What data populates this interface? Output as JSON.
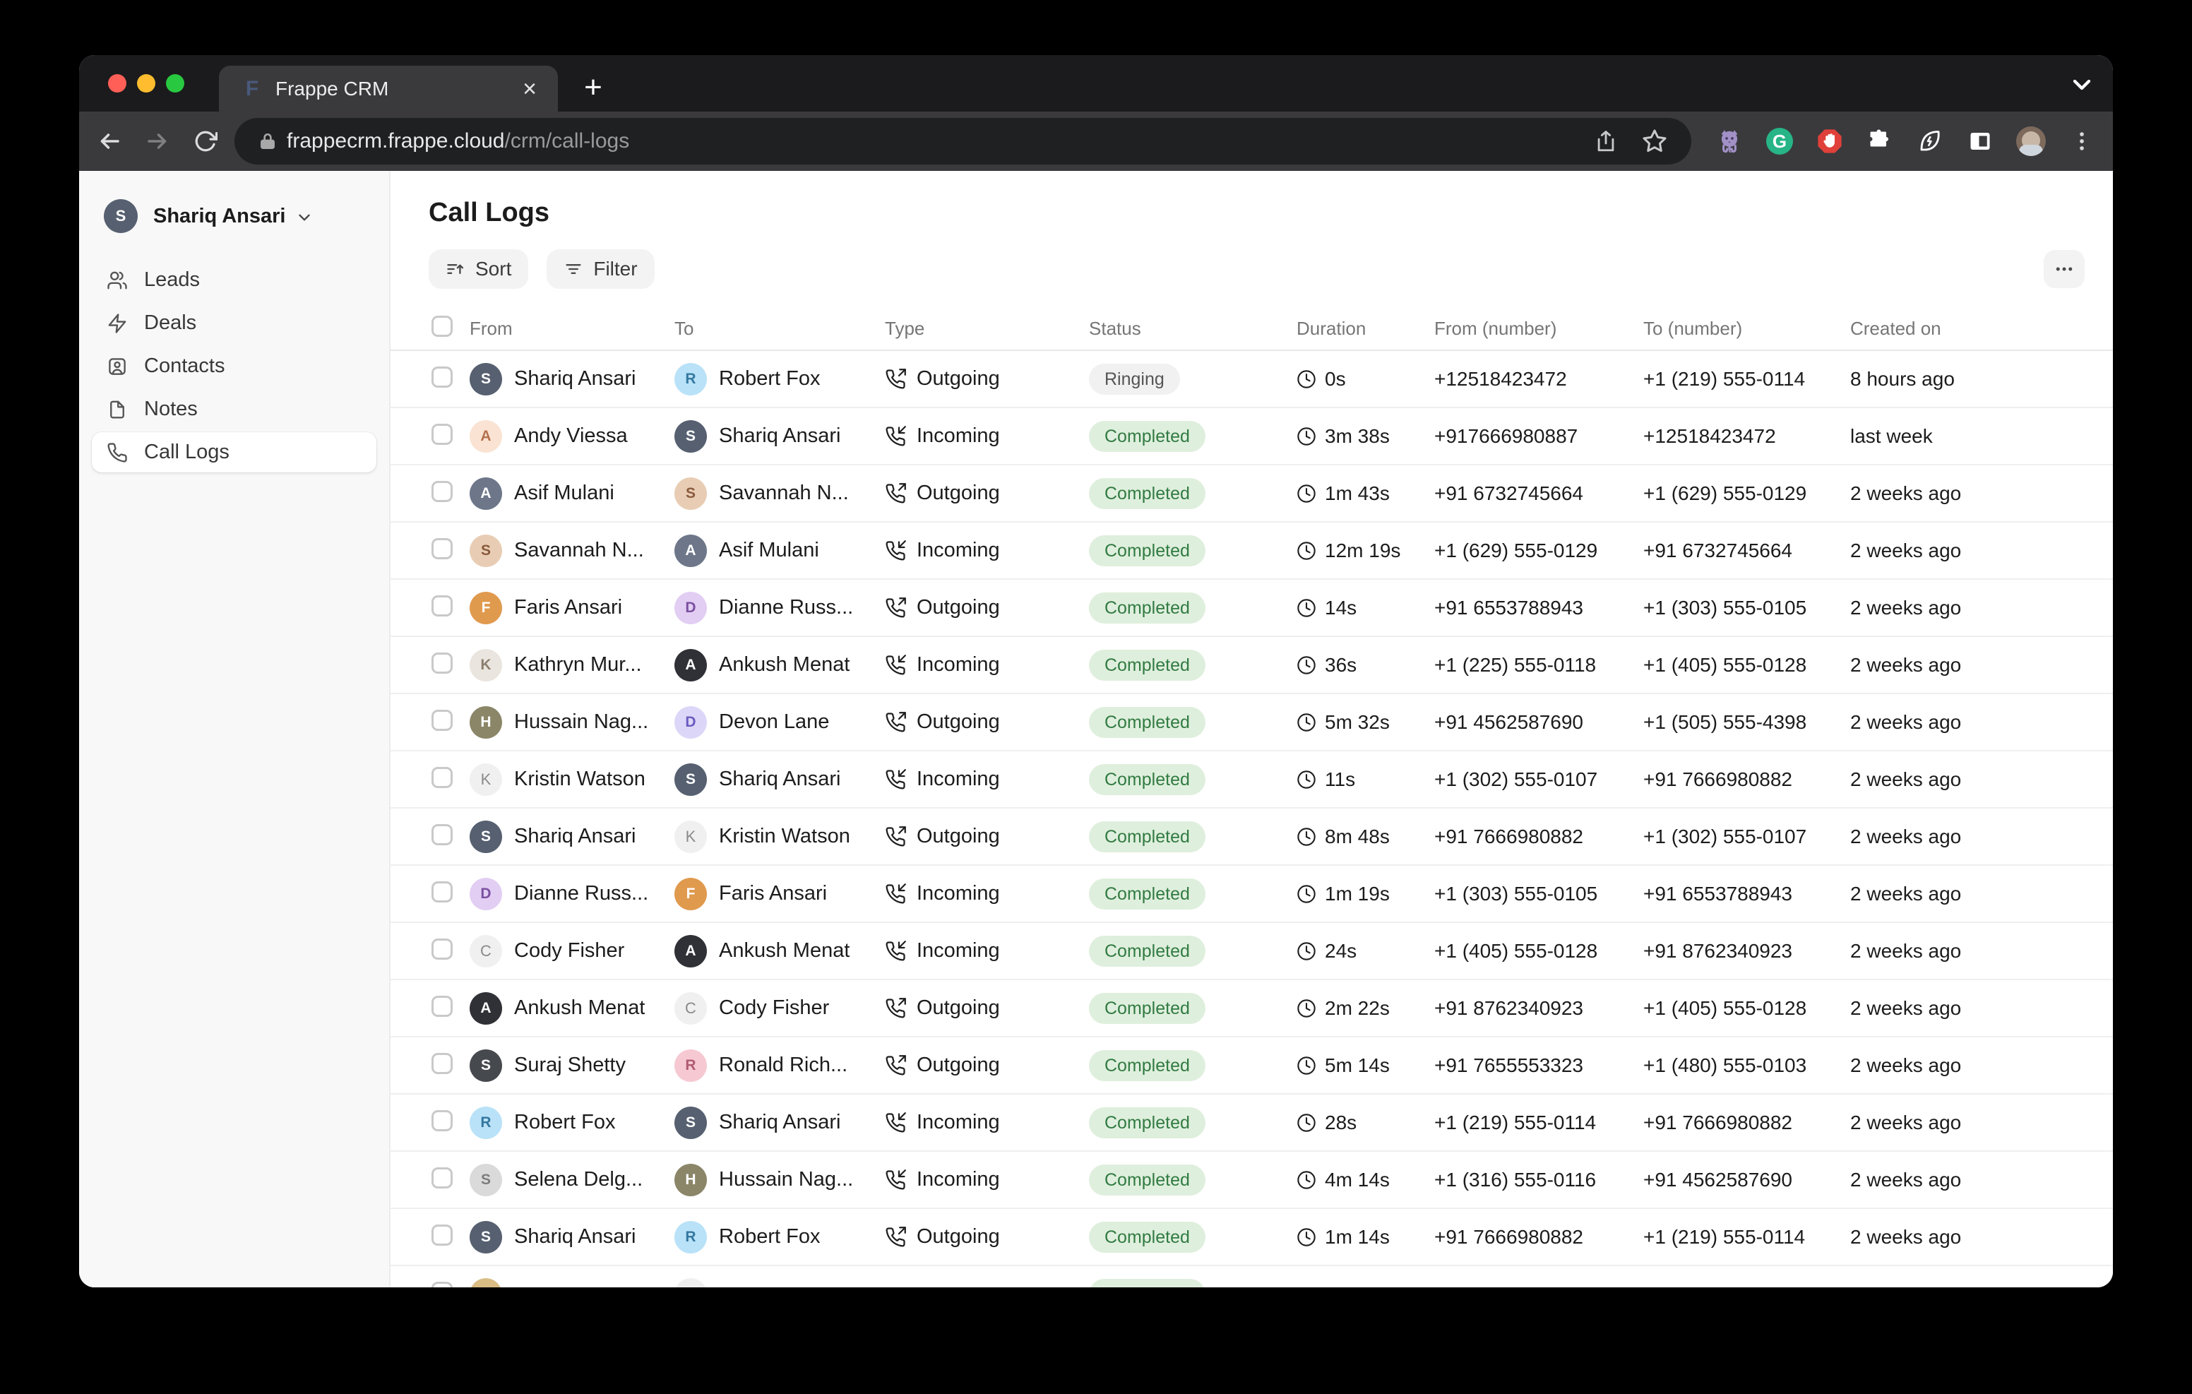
{
  "browser": {
    "tab_title": "Frappe CRM",
    "tab_close": "×",
    "new_tab": "+",
    "favicon_letter": "F",
    "url_host": "frappecrm.frappe.cloud",
    "url_path": "/crm/call-logs",
    "toolbar_icons": [
      "back-icon",
      "forward-icon",
      "reload-icon",
      "lock-icon",
      "share-icon",
      "bookmark-star-icon",
      "github-extension-icon",
      "grammarly-extension-icon",
      "adblock-extension-icon",
      "puzzle-extensions-icon",
      "leaf-extension-icon",
      "reading-panel-icon",
      "profile-avatar",
      "menu-dots-icon",
      "chevron-down-icon"
    ],
    "grammarly_letter": "G"
  },
  "sidebar": {
    "user": {
      "name": "Shariq Ansari",
      "initial": "S"
    },
    "items": [
      {
        "label": "Leads"
      },
      {
        "label": "Deals"
      },
      {
        "label": "Contacts"
      },
      {
        "label": "Notes"
      },
      {
        "label": "Call Logs",
        "active": true
      }
    ]
  },
  "main": {
    "title": "Call Logs",
    "sort_label": "Sort",
    "filter_label": "Filter",
    "table": {
      "columns": [
        "From",
        "To",
        "Type",
        "Status",
        "Duration",
        "From (number)",
        "To (number)",
        "Created on"
      ],
      "rows": [
        {
          "from": {
            "name": "Shariq Ansari",
            "avatar": {
              "bg": "#566070",
              "fg": "#ffffff",
              "letter": "S"
            }
          },
          "to": {
            "name": "Robert Fox",
            "avatar": {
              "bg": "#b9e2f8",
              "fg": "#34789f",
              "letter": "R"
            }
          },
          "type": "Outgoing",
          "status": "Ringing",
          "duration": "0s",
          "from_number": "+12518423472",
          "to_number": "+1 (219) 555-0114",
          "created": "8 hours ago"
        },
        {
          "from": {
            "name": "Andy Viessa",
            "avatar": {
              "bg": "#fae3d3",
              "fg": "#b4714e",
              "letter": "A"
            }
          },
          "to": {
            "name": "Shariq Ansari",
            "avatar": {
              "bg": "#566070",
              "fg": "#ffffff",
              "letter": "S"
            }
          },
          "type": "Incoming",
          "status": "Completed",
          "duration": "3m 38s",
          "from_number": "+917666980887",
          "to_number": "+12518423472",
          "created": "last week"
        },
        {
          "from": {
            "name": "Asif Mulani",
            "avatar": {
              "bg": "#6d7789",
              "fg": "#ffffff",
              "letter": "A"
            }
          },
          "to": {
            "name": "Savannah N...",
            "avatar": {
              "bg": "#e8cdb4",
              "fg": "#8a5a3c",
              "letter": "S"
            }
          },
          "type": "Outgoing",
          "status": "Completed",
          "duration": "1m 43s",
          "from_number": "+91 6732745664",
          "to_number": "+1 (629) 555-0129",
          "created": "2 weeks ago"
        },
        {
          "from": {
            "name": "Savannah N...",
            "avatar": {
              "bg": "#e8cdb4",
              "fg": "#8a5a3c",
              "letter": "S"
            }
          },
          "to": {
            "name": "Asif Mulani",
            "avatar": {
              "bg": "#6d7789",
              "fg": "#ffffff",
              "letter": "A"
            }
          },
          "type": "Incoming",
          "status": "Completed",
          "duration": "12m 19s",
          "from_number": "+1 (629) 555-0129",
          "to_number": "+91 6732745664",
          "created": "2 weeks ago"
        },
        {
          "from": {
            "name": "Faris Ansari",
            "avatar": {
              "bg": "#e09a4e",
              "fg": "#ffffff",
              "letter": "F"
            }
          },
          "to": {
            "name": "Dianne Russ...",
            "avatar": {
              "bg": "#e2cef3",
              "fg": "#7b4fa0",
              "letter": "D"
            }
          },
          "type": "Outgoing",
          "status": "Completed",
          "duration": "14s",
          "from_number": "+91 6553788943",
          "to_number": "+1 (303) 555-0105",
          "created": "2 weeks ago"
        },
        {
          "from": {
            "name": "Kathryn Mur...",
            "avatar": {
              "bg": "#eae5df",
              "fg": "#8c7f6f",
              "letter": "K"
            }
          },
          "to": {
            "name": "Ankush Menat",
            "avatar": {
              "bg": "#303136",
              "fg": "#ffffff",
              "letter": "A"
            }
          },
          "type": "Incoming",
          "status": "Completed",
          "duration": "36s",
          "from_number": "+1 (225) 555-0118",
          "to_number": "+1 (405) 555-0128",
          "created": "2 weeks ago"
        },
        {
          "from": {
            "name": "Hussain Nag...",
            "avatar": {
              "bg": "#8b8668",
              "fg": "#ffffff",
              "letter": "H"
            }
          },
          "to": {
            "name": "Devon Lane",
            "avatar": {
              "bg": "#dcd7f8",
              "fg": "#6b5bbf",
              "letter": "D"
            }
          },
          "type": "Outgoing",
          "status": "Completed",
          "duration": "5m 32s",
          "from_number": "+91 4562587690",
          "to_number": "+1 (505) 555-4398",
          "created": "2 weeks ago"
        },
        {
          "from": {
            "name": "Kristin Watson",
            "avatar": {
              "bg": "#f0f0f0",
              "fg": "#8a8a8a",
              "letter": "K",
              "kind": "letter"
            }
          },
          "to": {
            "name": "Shariq Ansari",
            "avatar": {
              "bg": "#566070",
              "fg": "#ffffff",
              "letter": "S"
            }
          },
          "type": "Incoming",
          "status": "Completed",
          "duration": "11s",
          "from_number": "+1 (302) 555-0107",
          "to_number": "+91 7666980882",
          "created": "2 weeks ago"
        },
        {
          "from": {
            "name": "Shariq Ansari",
            "avatar": {
              "bg": "#566070",
              "fg": "#ffffff",
              "letter": "S"
            }
          },
          "to": {
            "name": "Kristin Watson",
            "avatar": {
              "bg": "#f0f0f0",
              "fg": "#8a8a8a",
              "letter": "K",
              "kind": "letter"
            }
          },
          "type": "Outgoing",
          "status": "Completed",
          "duration": "8m 48s",
          "from_number": "+91 7666980882",
          "to_number": "+1 (302) 555-0107",
          "created": "2 weeks ago"
        },
        {
          "from": {
            "name": "Dianne Russ...",
            "avatar": {
              "bg": "#e2cef3",
              "fg": "#7b4fa0",
              "letter": "D"
            }
          },
          "to": {
            "name": "Faris Ansari",
            "avatar": {
              "bg": "#e09a4e",
              "fg": "#ffffff",
              "letter": "F"
            }
          },
          "type": "Incoming",
          "status": "Completed",
          "duration": "1m 19s",
          "from_number": "+1 (303) 555-0105",
          "to_number": "+91 6553788943",
          "created": "2 weeks ago"
        },
        {
          "from": {
            "name": "Cody Fisher",
            "avatar": {
              "bg": "#f0f0f0",
              "fg": "#8a8a8a",
              "letter": "C",
              "kind": "letter"
            }
          },
          "to": {
            "name": "Ankush Menat",
            "avatar": {
              "bg": "#303136",
              "fg": "#ffffff",
              "letter": "A"
            }
          },
          "type": "Incoming",
          "status": "Completed",
          "duration": "24s",
          "from_number": "+1 (405) 555-0128",
          "to_number": "+91 8762340923",
          "created": "2 weeks ago"
        },
        {
          "from": {
            "name": "Ankush Menat",
            "avatar": {
              "bg": "#303136",
              "fg": "#ffffff",
              "letter": "A"
            }
          },
          "to": {
            "name": "Cody Fisher",
            "avatar": {
              "bg": "#f0f0f0",
              "fg": "#8a8a8a",
              "letter": "C",
              "kind": "letter"
            }
          },
          "type": "Outgoing",
          "status": "Completed",
          "duration": "2m 22s",
          "from_number": "+91 8762340923",
          "to_number": "+1 (405) 555-0128",
          "created": "2 weeks ago"
        },
        {
          "from": {
            "name": "Suraj Shetty",
            "avatar": {
              "bg": "#46494e",
              "fg": "#ffffff",
              "letter": "S"
            }
          },
          "to": {
            "name": "Ronald Rich...",
            "avatar": {
              "bg": "#f6c9d2",
              "fg": "#b05a70",
              "letter": "R"
            }
          },
          "type": "Outgoing",
          "status": "Completed",
          "duration": "5m 14s",
          "from_number": "+91 7655553323",
          "to_number": "+1 (480) 555-0103",
          "created": "2 weeks ago"
        },
        {
          "from": {
            "name": "Robert Fox",
            "avatar": {
              "bg": "#b9e2f8",
              "fg": "#34789f",
              "letter": "R"
            }
          },
          "to": {
            "name": "Shariq Ansari",
            "avatar": {
              "bg": "#566070",
              "fg": "#ffffff",
              "letter": "S"
            }
          },
          "type": "Incoming",
          "status": "Completed",
          "duration": "28s",
          "from_number": "+1 (219) 555-0114",
          "to_number": "+91 7666980882",
          "created": "2 weeks ago"
        },
        {
          "from": {
            "name": "Selena Delg...",
            "avatar": {
              "bg": "#dadada",
              "fg": "#7d7d7d",
              "letter": "S"
            }
          },
          "to": {
            "name": "Hussain Nag...",
            "avatar": {
              "bg": "#8b8668",
              "fg": "#ffffff",
              "letter": "H"
            }
          },
          "type": "Incoming",
          "status": "Completed",
          "duration": "4m 14s",
          "from_number": "+1 (316) 555-0116",
          "to_number": "+91 4562587690",
          "created": "2 weeks ago"
        },
        {
          "from": {
            "name": "Shariq Ansari",
            "avatar": {
              "bg": "#566070",
              "fg": "#ffffff",
              "letter": "S"
            }
          },
          "to": {
            "name": "Robert Fox",
            "avatar": {
              "bg": "#b9e2f8",
              "fg": "#34789f",
              "letter": "R"
            }
          },
          "type": "Outgoing",
          "status": "Completed",
          "duration": "1m 14s",
          "from_number": "+91 7666980882",
          "to_number": "+1 (219) 555-0114",
          "created": "2 weeks ago"
        },
        {
          "from": {
            "name": "",
            "avatar": {
              "bg": "#d9bd85",
              "fg": "#ffffff",
              "letter": ""
            }
          },
          "to": {
            "name": "",
            "avatar": {
              "bg": "#efefef",
              "fg": "#8a8a8a",
              "letter": "",
              "kind": "letter"
            }
          },
          "type": "",
          "status": "Completed",
          "duration": "",
          "from_number": "",
          "to_number": "",
          "created": ""
        }
      ]
    }
  },
  "colors": {
    "traffic_red": "#ff5f57",
    "traffic_yellow": "#febc2e",
    "traffic_green": "#28c840",
    "badge_completed_bg": "#dfefdd",
    "badge_completed_fg": "#317b42",
    "badge_ringing_bg": "#f1f1f1",
    "badge_ringing_fg": "#555555",
    "accent_grammarly": "#27b487",
    "accent_adblock": "#e0403a",
    "accent_octo": "#a191c7"
  }
}
